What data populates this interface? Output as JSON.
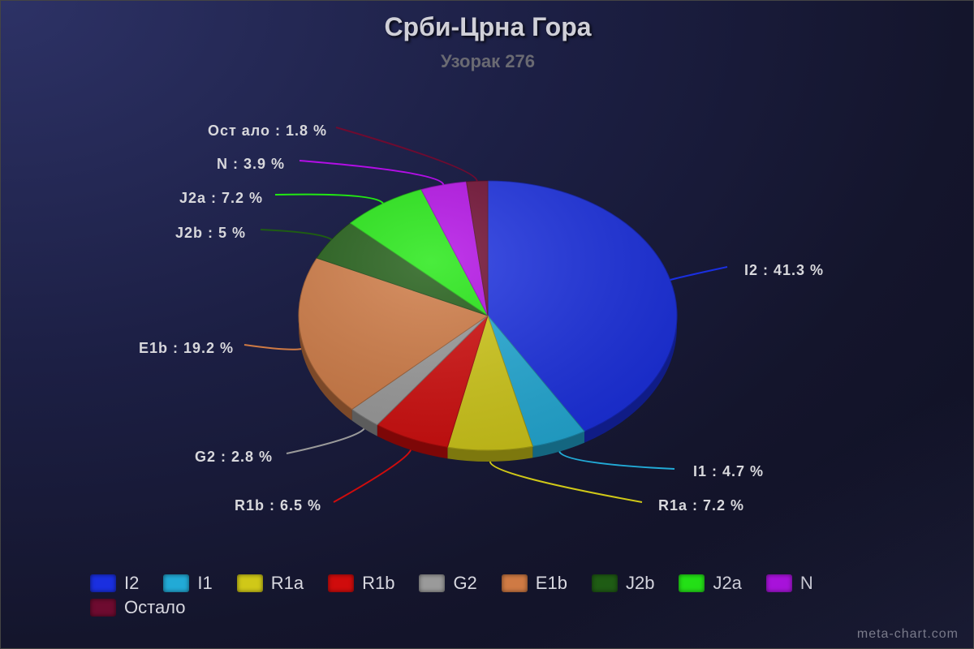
{
  "chart_data": {
    "type": "pie",
    "title": "Срби-Црна Гора",
    "subtitle": "Узорак 276",
    "slices": [
      {
        "name": "I2",
        "value": 41.3,
        "label": "I2 : 41.3 %",
        "color": "#1a2fe0"
      },
      {
        "name": "I1",
        "value": 4.7,
        "label": "I1 : 4.7 %",
        "color": "#22aad6"
      },
      {
        "name": "R1a",
        "value": 7.2,
        "label": "R1a : 7.2 %",
        "color": "#d0c818"
      },
      {
        "name": "R1b",
        "value": 6.5,
        "label": "R1b : 6.5 %",
        "color": "#d00c0c"
      },
      {
        "name": "G2",
        "value": 2.8,
        "label": "G2 : 2.8 %",
        "color": "#9a9a9a"
      },
      {
        "name": "E1b",
        "value": 19.2,
        "label": "E1b : 19.2 %",
        "color": "#cf7a44"
      },
      {
        "name": "J2b",
        "value": 5,
        "label": "J2b : 5 %",
        "color": "#1f5c14"
      },
      {
        "name": "J2a",
        "value": 7.2,
        "label": "J2a : 7.2 %",
        "color": "#22e812"
      },
      {
        "name": "N",
        "value": 3.9,
        "label": "N : 3.9 %",
        "color": "#b30ee6"
      },
      {
        "name": "Остало",
        "value": 1.8,
        "label": "Ост ало : 1.8 %",
        "color": "#6e0b30"
      }
    ],
    "legend": "bottom"
  },
  "watermark": "meta-chart.com"
}
